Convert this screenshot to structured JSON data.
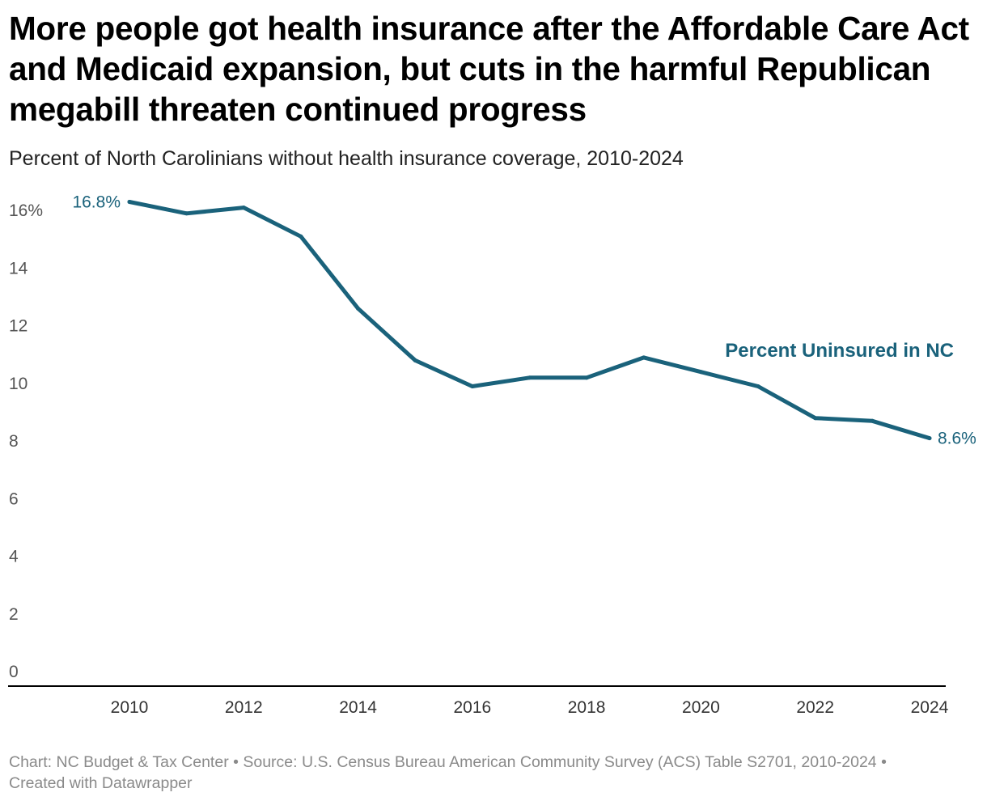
{
  "header": {
    "title": "More people got health insurance after the Affordable Care Act and Medicaid expansion, but cuts in the harmful Republican megabill threaten continued progress",
    "subtitle": "Percent of North Carolinians without health insurance coverage, 2010-2024"
  },
  "footer": {
    "chart_credit": "Chart: NC Budget & Tax Center",
    "separator": " • ",
    "source": "Source: U.S. Census Bureau American Community Survey (ACS) Table S2701, 2010-2024",
    "created_with": "Created with Datawrapper"
  },
  "colors": {
    "line": "#1a627b",
    "baseline": "#000000",
    "tick_text": "#555555"
  },
  "chart_data": {
    "type": "line",
    "title": "More people got health insurance after the Affordable Care Act and Medicaid expansion, but cuts in the harmful Republican megabill threaten continued progress",
    "subtitle": "Percent of North Carolinians without health insurance coverage, 2010-2024",
    "xlabel": "",
    "ylabel": "",
    "x": [
      2010,
      2011,
      2012,
      2013,
      2014,
      2015,
      2016,
      2017,
      2018,
      2019,
      2020,
      2021,
      2022,
      2023,
      2024
    ],
    "series": [
      {
        "name": "Percent Uninsured in NC",
        "values": [
          16.8,
          16.4,
          16.6,
          15.6,
          13.1,
          11.3,
          10.4,
          10.7,
          10.7,
          11.4,
          10.9,
          10.4,
          9.3,
          9.2,
          8.6
        ]
      }
    ],
    "ylim": [
      0,
      16.8
    ],
    "xlim": [
      2009,
      2024
    ],
    "y_ticks": [
      0,
      2,
      4,
      6,
      8,
      10,
      12,
      14,
      16
    ],
    "y_tick_labels": [
      "0",
      "2",
      "4",
      "6",
      "8",
      "10",
      "12",
      "14",
      "16%"
    ],
    "x_ticks": [
      2010,
      2012,
      2014,
      2016,
      2018,
      2020,
      2022,
      2024
    ],
    "x_tick_labels": [
      "2010",
      "2012",
      "2014",
      "2016",
      "2018",
      "2020",
      "2022",
      "2024"
    ],
    "data_labels": [
      {
        "x": 2010,
        "text": "16.8%",
        "position": "left"
      },
      {
        "x": 2024,
        "text": "8.6%",
        "position": "right"
      }
    ],
    "series_label": {
      "text": "Percent Uninsured in NC",
      "position": "above line, right"
    },
    "grid": false,
    "legend": "none (direct label)"
  }
}
